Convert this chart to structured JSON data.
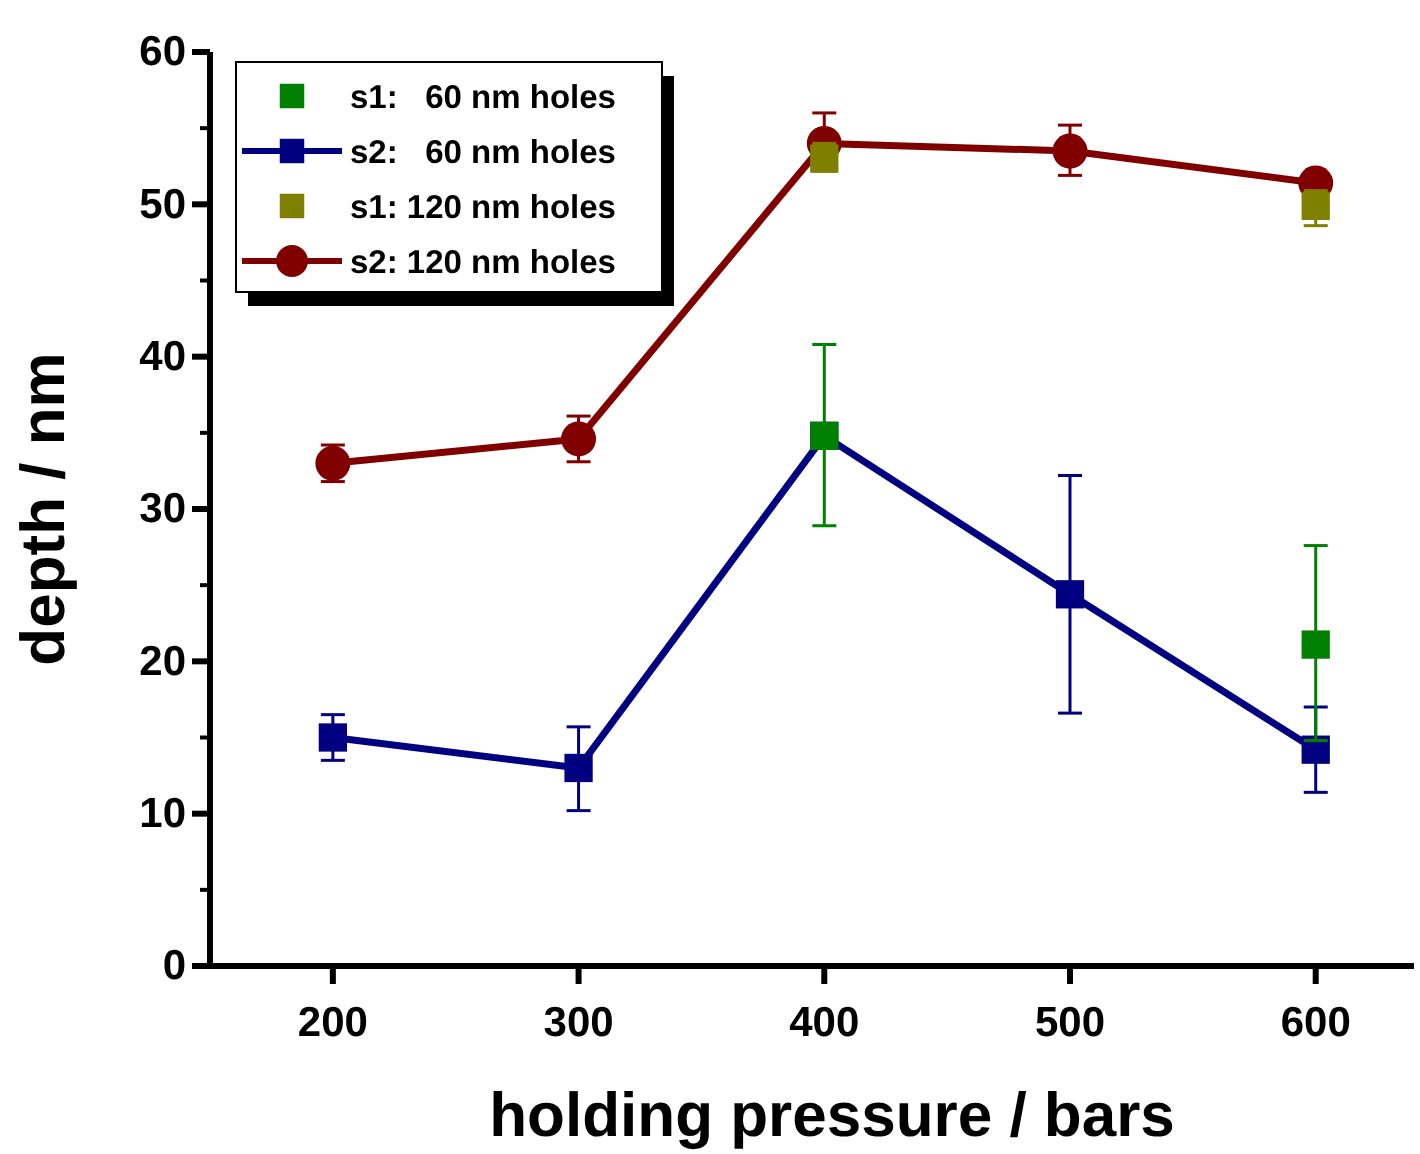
{
  "chart_data": {
    "type": "line",
    "xlabel": "holding pressure / bars",
    "ylabel": "depth / nm",
    "xlim": [
      150,
      640
    ],
    "xticks": [
      200,
      300,
      400,
      500,
      600
    ],
    "ylim": [
      0,
      60
    ],
    "yticks": [
      0,
      10,
      20,
      30,
      40,
      50,
      60
    ],
    "legend": "top left",
    "grid": false,
    "series": [
      {
        "name": "s1:   60 nm holes",
        "type": "scatter",
        "marker": "square",
        "color": "#008000",
        "x": [
          400,
          600
        ],
        "values": [
          34.8,
          21.1
        ],
        "errors": [
          [
            28.9,
            40.8
          ],
          [
            14.8,
            27.6
          ]
        ]
      },
      {
        "name": "s2:   60 nm holes",
        "marker": "square",
        "color": "#000080",
        "x": [
          200,
          300,
          400,
          500,
          600
        ],
        "values": [
          15.0,
          13.0,
          34.8,
          24.4,
          14.2
        ],
        "errors": [
          [
            13.5,
            16.5
          ],
          [
            10.2,
            15.7
          ],
          null,
          [
            16.6,
            32.2
          ],
          [
            11.4,
            17.0
          ]
        ]
      },
      {
        "name": "s1: 120 nm holes",
        "type": "scatter",
        "marker": "square",
        "color": "#808000",
        "x": [
          400,
          600
        ],
        "values": [
          53.0,
          49.9
        ],
        "errors": [
          [
            52.2,
            54.0
          ],
          [
            48.6,
            50.9
          ]
        ]
      },
      {
        "name": "s2: 120 nm holes",
        "marker": "circle",
        "color": "#800000",
        "x": [
          200,
          300,
          400,
          500,
          600
        ],
        "values": [
          33.0,
          34.6,
          54.0,
          53.5,
          51.4
        ],
        "errors": [
          [
            31.8,
            34.2
          ],
          [
            33.1,
            36.1
          ],
          [
            52.2,
            56.0
          ],
          [
            51.9,
            55.2
          ],
          null
        ]
      }
    ]
  }
}
